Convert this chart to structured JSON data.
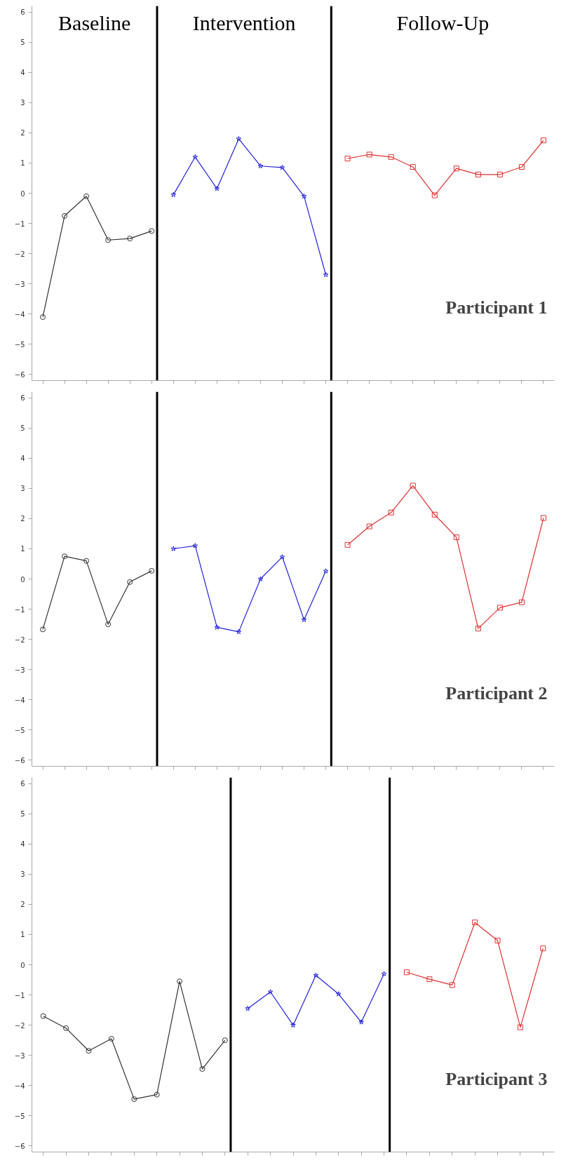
{
  "chart_data": [
    {
      "type": "line",
      "annotations": [
        "Baseline",
        "Intervention",
        "Follow-Up",
        "Participant 1"
      ],
      "categories": [
        null,
        null,
        null,
        null,
        null,
        null,
        null,
        null,
        null,
        null,
        null,
        null,
        null,
        null,
        null,
        null,
        null,
        null,
        null,
        null,
        null,
        null,
        null,
        null
      ],
      "ylim": [
        -6.2,
        6.2
      ],
      "yticks": [
        {
          "value": -6,
          "label": "−6"
        },
        {
          "value": -5,
          "label": "−5"
        },
        {
          "value": -4,
          "label": "−4"
        },
        {
          "value": -3,
          "label": "−3"
        },
        {
          "value": -2,
          "label": "−2"
        },
        {
          "value": -1,
          "label": "−1"
        },
        0,
        1,
        2,
        3,
        4,
        5,
        6
      ],
      "grid": false,
      "series": [
        {
          "color": "#333333",
          "marker": "circle",
          "values": [
            -4.1,
            -0.75,
            -0.1,
            -1.55,
            -1.5,
            -1.25,
            null,
            null,
            null,
            null,
            null,
            null,
            null,
            null,
            null,
            null,
            null,
            null,
            null,
            null,
            null,
            null,
            null,
            null
          ]
        },
        {
          "color": "#2222dd",
          "marker": "star",
          "values": [
            null,
            null,
            null,
            null,
            null,
            null,
            -0.05,
            1.2,
            0.15,
            1.8,
            0.9,
            0.85,
            -0.1,
            -2.7,
            null,
            null,
            null,
            null,
            null,
            null,
            null,
            null,
            null,
            null
          ]
        },
        {
          "color": "#e03030",
          "marker": "square",
          "values": [
            null,
            null,
            null,
            null,
            null,
            null,
            null,
            null,
            null,
            null,
            null,
            null,
            null,
            null,
            1.15,
            1.28,
            1.2,
            0.87,
            -0.07,
            0.82,
            0.62,
            0.62,
            0.87,
            1.75
          ]
        }
      ]
    },
    {
      "type": "line",
      "annotations": [
        "Participant 2"
      ],
      "categories": [
        null,
        null,
        null,
        null,
        null,
        null,
        null,
        null,
        null,
        null,
        null,
        null,
        null,
        null,
        null,
        null,
        null,
        null,
        null,
        null,
        null,
        null,
        null,
        null
      ],
      "ylim": [
        -6.2,
        6.2
      ],
      "yticks": [
        {
          "value": -6,
          "label": "−6"
        },
        {
          "value": -5,
          "label": "−5"
        },
        {
          "value": -4,
          "label": "−4"
        },
        {
          "value": -3,
          "label": "−3"
        },
        {
          "value": -2,
          "label": "−2"
        },
        {
          "value": -1,
          "label": "−1"
        },
        0,
        1,
        2,
        3,
        4,
        5,
        6
      ],
      "grid": false,
      "series": [
        {
          "color": "#333333",
          "marker": "circle",
          "values": [
            -1.67,
            0.75,
            0.6,
            -1.5,
            -0.1,
            0.27,
            null,
            null,
            null,
            null,
            null,
            null,
            null,
            null,
            null,
            null,
            null,
            null,
            null,
            null,
            null,
            null,
            null,
            null
          ]
        },
        {
          "color": "#2222dd",
          "marker": "star",
          "values": [
            null,
            null,
            null,
            null,
            null,
            null,
            1.0,
            1.1,
            -1.6,
            -1.75,
            0.0,
            0.73,
            -1.35,
            0.26,
            null,
            null,
            null,
            null,
            null,
            null,
            null,
            null,
            null,
            null
          ]
        },
        {
          "color": "#e03030",
          "marker": "square",
          "values": [
            null,
            null,
            null,
            null,
            null,
            null,
            null,
            null,
            null,
            null,
            null,
            null,
            null,
            null,
            1.13,
            1.74,
            2.2,
            3.09,
            2.13,
            1.38,
            -1.64,
            -0.95,
            -0.77,
            2.02
          ]
        }
      ]
    },
    {
      "type": "line",
      "annotations": [
        "Participant 3"
      ],
      "categories": [
        null,
        null,
        null,
        null,
        null,
        null,
        null,
        null,
        null,
        null,
        null,
        null,
        null,
        null,
        null,
        null,
        null,
        null,
        null,
        null,
        null,
        null,
        null
      ],
      "ylim": [
        -6.2,
        6.2
      ],
      "yticks": [
        {
          "value": -6,
          "label": "−6"
        },
        {
          "value": -5,
          "label": "−5"
        },
        {
          "value": -4,
          "label": "−4"
        },
        {
          "value": -3,
          "label": "−3"
        },
        {
          "value": -2,
          "label": "−2"
        },
        {
          "value": -1,
          "label": "−1"
        },
        0,
        1,
        2,
        3,
        4,
        5,
        6
      ],
      "grid": false,
      "series": [
        {
          "color": "#333333",
          "marker": "circle",
          "values": [
            -1.7,
            -2.1,
            -2.85,
            -2.45,
            -4.45,
            -4.3,
            -0.55,
            -3.45,
            -2.5,
            null,
            null,
            null,
            null,
            null,
            null,
            null,
            null,
            null,
            null,
            null,
            null,
            null,
            null
          ]
        },
        {
          "color": "#2222dd",
          "marker": "star",
          "values": [
            null,
            null,
            null,
            null,
            null,
            null,
            null,
            null,
            null,
            -1.45,
            -0.9,
            -2.0,
            -0.35,
            -0.97,
            -1.9,
            -0.3,
            null,
            null,
            null,
            null,
            null,
            null,
            null
          ]
        },
        {
          "color": "#e03030",
          "marker": "square",
          "values": [
            null,
            null,
            null,
            null,
            null,
            null,
            null,
            null,
            null,
            null,
            null,
            null,
            null,
            null,
            null,
            null,
            -0.25,
            -0.48,
            -0.67,
            1.4,
            0.8,
            -2.07,
            0.54
          ]
        }
      ]
    }
  ]
}
